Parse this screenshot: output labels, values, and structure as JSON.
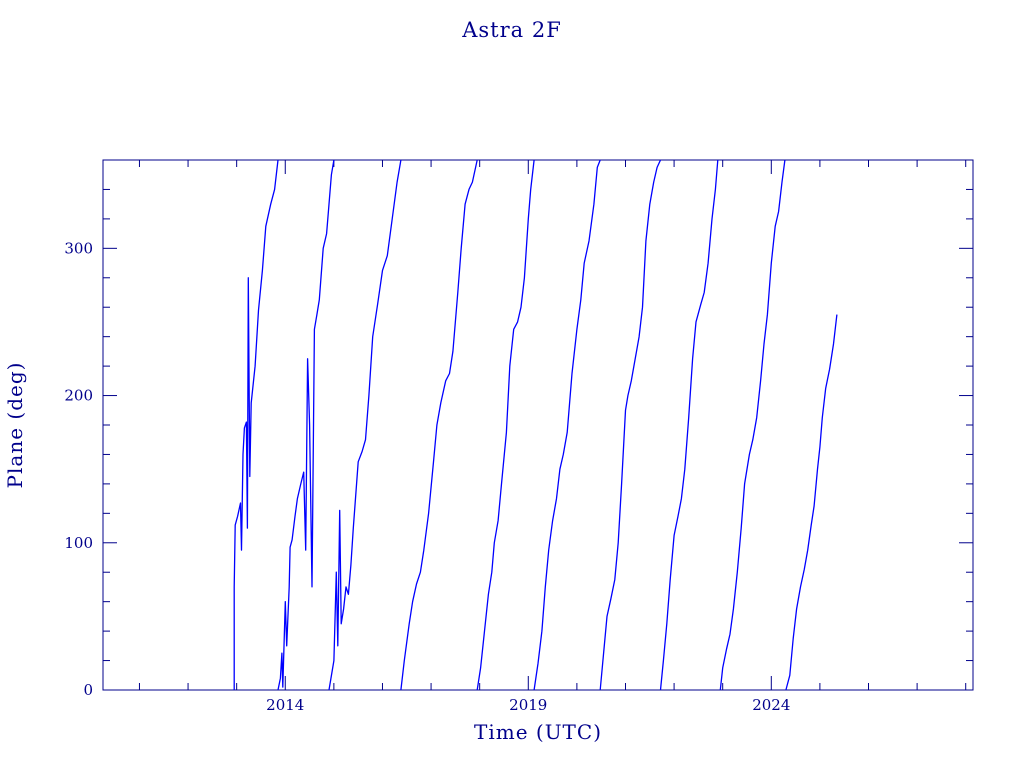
{
  "chart_data": {
    "type": "line",
    "title": "Astra 2F",
    "xlabel": "Time (UTC)",
    "ylabel": "Plane (deg)",
    "xlim": [
      2010.25,
      2028.15
    ],
    "ylim": [
      0,
      360
    ],
    "x_ticks": [
      2014,
      2019,
      2024
    ],
    "y_ticks": [
      0,
      100,
      200,
      300
    ],
    "grid": false,
    "colors": {
      "axes": "#00008b",
      "series": "#0000ff"
    },
    "series": [
      {
        "values": [
          [
            2012.95,
            0
          ],
          [
            2012.95,
            70
          ],
          [
            2012.97,
            112
          ],
          [
            2013.02,
            118
          ],
          [
            2013.08,
            127
          ],
          [
            2013.1,
            95
          ],
          [
            2013.13,
            160
          ],
          [
            2013.16,
            178
          ],
          [
            2013.2,
            182
          ],
          [
            2013.22,
            110
          ],
          [
            2013.24,
            280
          ],
          [
            2013.27,
            145
          ],
          [
            2013.3,
            195
          ],
          [
            2013.38,
            220
          ],
          [
            2013.45,
            258
          ],
          [
            2013.53,
            285
          ],
          [
            2013.6,
            315
          ],
          [
            2013.7,
            330
          ],
          [
            2013.78,
            340
          ],
          [
            2013.85,
            360
          ]
        ]
      },
      {
        "values": [
          [
            2013.85,
            0
          ],
          [
            2013.9,
            8
          ],
          [
            2013.93,
            25
          ],
          [
            2013.95,
            2
          ],
          [
            2014.0,
            60
          ],
          [
            2014.03,
            30
          ],
          [
            2014.08,
            70
          ],
          [
            2014.1,
            97
          ],
          [
            2014.14,
            102
          ],
          [
            2014.2,
            118
          ],
          [
            2014.25,
            130
          ],
          [
            2014.32,
            140
          ],
          [
            2014.38,
            148
          ],
          [
            2014.42,
            95
          ],
          [
            2014.46,
            225
          ],
          [
            2014.5,
            180
          ],
          [
            2014.55,
            70
          ],
          [
            2014.6,
            245
          ],
          [
            2014.65,
            255
          ],
          [
            2014.7,
            265
          ],
          [
            2014.78,
            300
          ],
          [
            2014.85,
            310
          ],
          [
            2014.9,
            330
          ],
          [
            2014.95,
            350
          ],
          [
            2015.0,
            360
          ]
        ]
      },
      {
        "values": [
          [
            2014.9,
            0
          ],
          [
            2015.0,
            20
          ],
          [
            2015.05,
            80
          ],
          [
            2015.08,
            30
          ],
          [
            2015.12,
            122
          ],
          [
            2015.15,
            45
          ],
          [
            2015.2,
            55
          ],
          [
            2015.25,
            70
          ],
          [
            2015.3,
            65
          ],
          [
            2015.35,
            85
          ],
          [
            2015.4,
            110
          ],
          [
            2015.5,
            155
          ],
          [
            2015.58,
            162
          ],
          [
            2015.65,
            170
          ],
          [
            2015.72,
            200
          ],
          [
            2015.8,
            240
          ],
          [
            2015.9,
            262
          ],
          [
            2016.0,
            285
          ],
          [
            2016.1,
            295
          ],
          [
            2016.2,
            320
          ],
          [
            2016.3,
            345
          ],
          [
            2016.38,
            360
          ]
        ]
      },
      {
        "values": [
          [
            2016.38,
            0
          ],
          [
            2016.45,
            20
          ],
          [
            2016.55,
            45
          ],
          [
            2016.62,
            60
          ],
          [
            2016.7,
            72
          ],
          [
            2016.78,
            80
          ],
          [
            2016.85,
            95
          ],
          [
            2016.95,
            120
          ],
          [
            2017.05,
            155
          ],
          [
            2017.12,
            180
          ],
          [
            2017.2,
            195
          ],
          [
            2017.3,
            210
          ],
          [
            2017.38,
            215
          ],
          [
            2017.45,
            230
          ],
          [
            2017.55,
            270
          ],
          [
            2017.62,
            300
          ],
          [
            2017.7,
            330
          ],
          [
            2017.78,
            340
          ],
          [
            2017.85,
            345
          ],
          [
            2017.95,
            360
          ]
        ]
      },
      {
        "values": [
          [
            2017.95,
            0
          ],
          [
            2018.02,
            15
          ],
          [
            2018.1,
            40
          ],
          [
            2018.18,
            65
          ],
          [
            2018.25,
            80
          ],
          [
            2018.3,
            100
          ],
          [
            2018.38,
            115
          ],
          [
            2018.45,
            140
          ],
          [
            2018.55,
            175
          ],
          [
            2018.62,
            220
          ],
          [
            2018.7,
            245
          ],
          [
            2018.78,
            250
          ],
          [
            2018.85,
            260
          ],
          [
            2018.92,
            280
          ],
          [
            2019.0,
            320
          ],
          [
            2019.05,
            340
          ],
          [
            2019.12,
            360
          ]
        ]
      },
      {
        "values": [
          [
            2019.12,
            0
          ],
          [
            2019.2,
            18
          ],
          [
            2019.28,
            40
          ],
          [
            2019.35,
            70
          ],
          [
            2019.42,
            95
          ],
          [
            2019.5,
            115
          ],
          [
            2019.58,
            130
          ],
          [
            2019.65,
            150
          ],
          [
            2019.72,
            160
          ],
          [
            2019.8,
            175
          ],
          [
            2019.9,
            215
          ],
          [
            2020.0,
            245
          ],
          [
            2020.08,
            265
          ],
          [
            2020.15,
            290
          ],
          [
            2020.25,
            305
          ],
          [
            2020.35,
            330
          ],
          [
            2020.42,
            355
          ],
          [
            2020.48,
            360
          ]
        ]
      },
      {
        "values": [
          [
            2020.48,
            0
          ],
          [
            2020.55,
            25
          ],
          [
            2020.62,
            50
          ],
          [
            2020.7,
            62
          ],
          [
            2020.78,
            75
          ],
          [
            2020.85,
            100
          ],
          [
            2020.92,
            140
          ],
          [
            2021.0,
            190
          ],
          [
            2021.05,
            200
          ],
          [
            2021.12,
            210
          ],
          [
            2021.2,
            225
          ],
          [
            2021.28,
            240
          ],
          [
            2021.35,
            260
          ],
          [
            2021.42,
            305
          ],
          [
            2021.5,
            330
          ],
          [
            2021.58,
            345
          ],
          [
            2021.65,
            355
          ],
          [
            2021.72,
            360
          ]
        ]
      },
      {
        "values": [
          [
            2021.72,
            0
          ],
          [
            2021.78,
            20
          ],
          [
            2021.85,
            45
          ],
          [
            2021.92,
            75
          ],
          [
            2022.0,
            105
          ],
          [
            2022.08,
            118
          ],
          [
            2022.15,
            130
          ],
          [
            2022.22,
            150
          ],
          [
            2022.3,
            185
          ],
          [
            2022.38,
            225
          ],
          [
            2022.45,
            250
          ],
          [
            2022.55,
            262
          ],
          [
            2022.62,
            270
          ],
          [
            2022.7,
            290
          ],
          [
            2022.78,
            320
          ],
          [
            2022.85,
            340
          ],
          [
            2022.9,
            360
          ]
        ]
      },
      {
        "values": [
          [
            2022.95,
            0
          ],
          [
            2023.0,
            15
          ],
          [
            2023.08,
            28
          ],
          [
            2023.15,
            38
          ],
          [
            2023.22,
            55
          ],
          [
            2023.3,
            80
          ],
          [
            2023.38,
            110
          ],
          [
            2023.45,
            140
          ],
          [
            2023.55,
            160
          ],
          [
            2023.62,
            170
          ],
          [
            2023.7,
            185
          ],
          [
            2023.78,
            210
          ],
          [
            2023.85,
            235
          ],
          [
            2023.92,
            255
          ],
          [
            2024.0,
            290
          ],
          [
            2024.08,
            315
          ],
          [
            2024.15,
            325
          ],
          [
            2024.22,
            345
          ],
          [
            2024.28,
            360
          ]
        ]
      },
      {
        "values": [
          [
            2024.3,
            0
          ],
          [
            2024.38,
            10
          ],
          [
            2024.45,
            35
          ],
          [
            2024.52,
            55
          ],
          [
            2024.6,
            70
          ],
          [
            2024.68,
            82
          ],
          [
            2024.75,
            95
          ],
          [
            2024.82,
            112
          ],
          [
            2024.88,
            125
          ],
          [
            2024.95,
            150
          ],
          [
            2025.0,
            165
          ],
          [
            2025.05,
            185
          ],
          [
            2025.12,
            205
          ],
          [
            2025.2,
            218
          ],
          [
            2025.28,
            235
          ],
          [
            2025.35,
            255
          ]
        ]
      }
    ]
  }
}
